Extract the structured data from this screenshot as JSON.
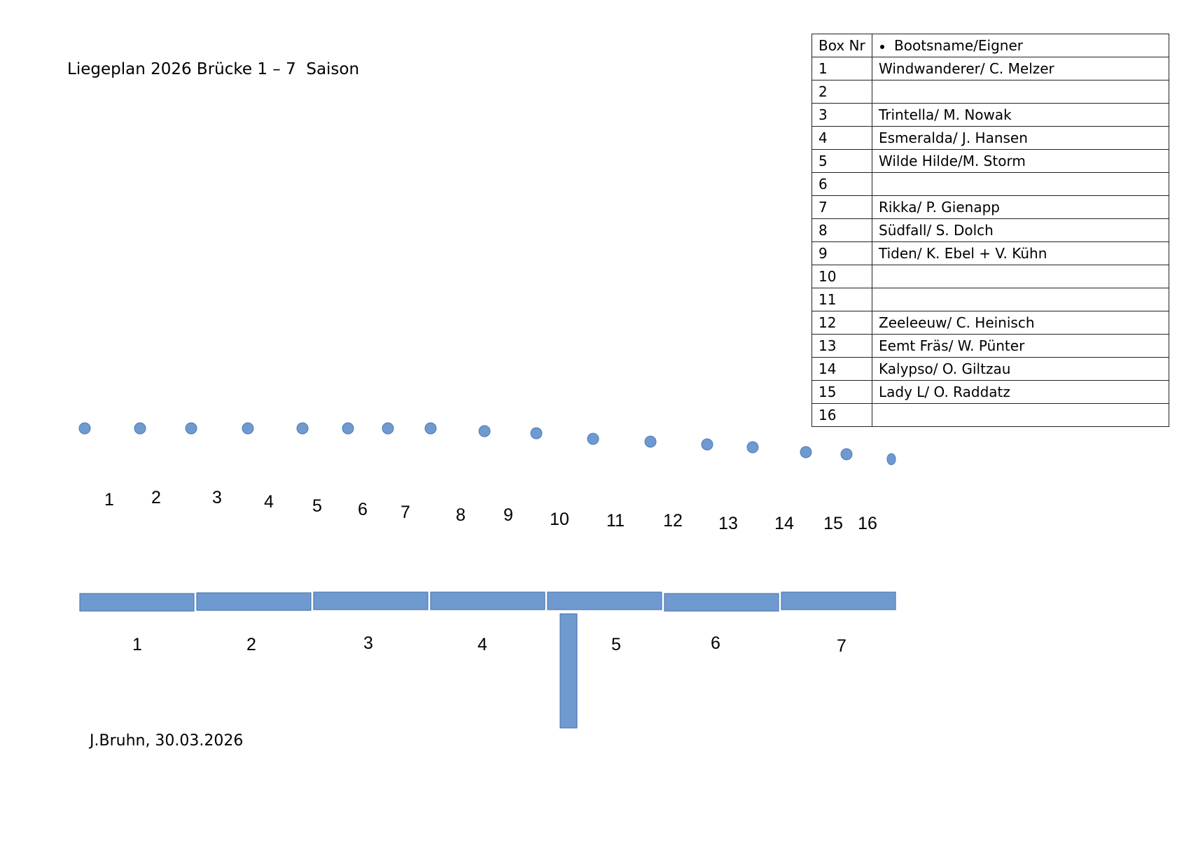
{
  "title": "Liegeplan 2026 Brücke 1 – 7  Saison",
  "footer": "J.Bruhn, 30.03.2026",
  "colors": {
    "shape_fill": "#6f9ad0",
    "shape_border": "#4f7ab5"
  },
  "table": {
    "headers": [
      "Box Nr",
      "Bootsname/Eigner"
    ],
    "rows": [
      {
        "box": "1",
        "name": "Windwanderer/ C. Melzer"
      },
      {
        "box": "2",
        "name": ""
      },
      {
        "box": "3",
        "name": "Trintella/ M. Nowak"
      },
      {
        "box": "4",
        "name": "Esmeralda/ J. Hansen"
      },
      {
        "box": "5",
        "name": "Wilde Hilde/M. Storm"
      },
      {
        "box": "6",
        "name": ""
      },
      {
        "box": "7",
        "name": "Rikka/ P. Gienapp"
      },
      {
        "box": "8",
        "name": "Südfall/ S. Dolch"
      },
      {
        "box": "9",
        "name": "Tiden/ K. Ebel + V. Kühn"
      },
      {
        "box": "10",
        "name": ""
      },
      {
        "box": "11",
        "name": ""
      },
      {
        "box": "12",
        "name": "Zeeleeuw/ C. Heinisch"
      },
      {
        "box": "13",
        "name": "Eemt Fräs/ W. Pünter"
      },
      {
        "box": "14",
        "name": "Kalypso/ O. Giltzau"
      },
      {
        "box": "15",
        "name": "Lady L/ O. Raddatz"
      },
      {
        "box": "16",
        "name": ""
      }
    ]
  },
  "mooring_posts": [
    "1",
    "2",
    "3",
    "4",
    "5",
    "6",
    "7",
    "8",
    "9",
    "10",
    "11",
    "12",
    "13",
    "14",
    "15",
    "16"
  ],
  "pier_sections": [
    "1",
    "2",
    "3",
    "4",
    "5",
    "6",
    "7"
  ]
}
